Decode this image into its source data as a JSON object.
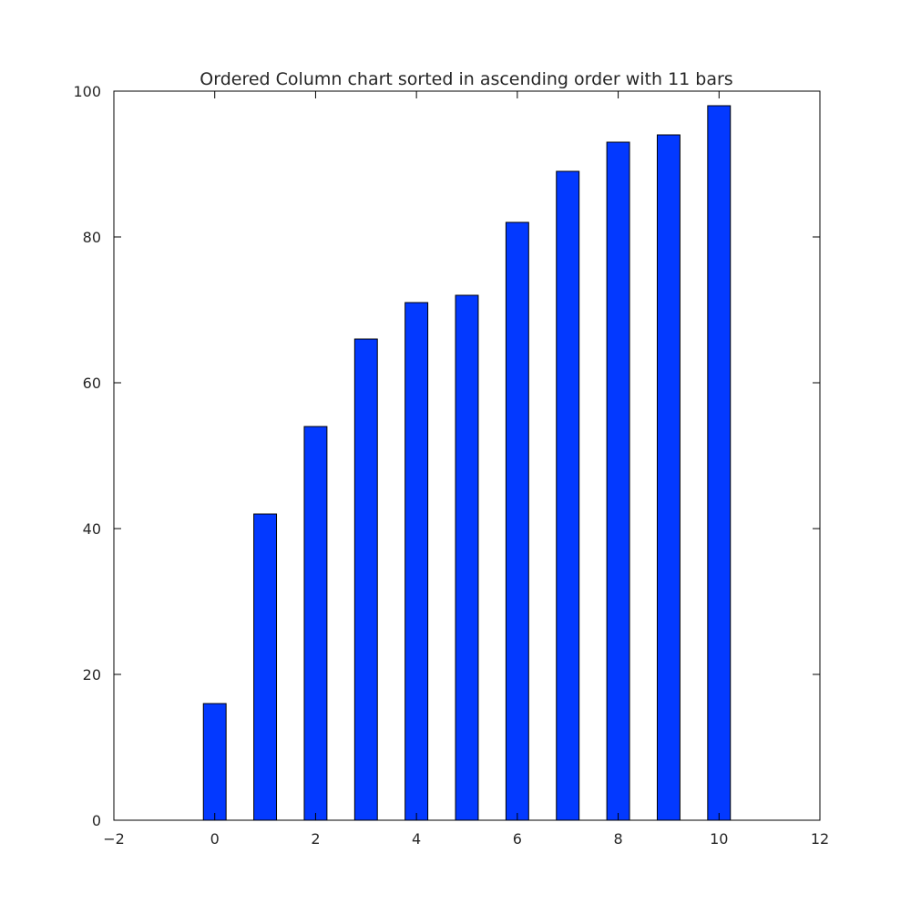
{
  "chart_data": {
    "type": "bar",
    "title": "Ordered Column chart sorted in ascending order with 11 bars",
    "xlabel": "",
    "ylabel": "",
    "x": [
      0,
      1,
      2,
      3,
      4,
      5,
      6,
      7,
      8,
      9,
      10
    ],
    "values": [
      16,
      42,
      54,
      66,
      71,
      72,
      82,
      89,
      93,
      94,
      98
    ],
    "xlim": [
      -2,
      12
    ],
    "ylim": [
      0,
      100
    ],
    "xticks": [
      "−2",
      "0",
      "2",
      "4",
      "6",
      "8",
      "10",
      "12"
    ],
    "yticks": [
      "0",
      "20",
      "40",
      "60",
      "80",
      "100"
    ],
    "grid": false,
    "bar_color": "#0339ff",
    "edge_color": "#000000"
  }
}
